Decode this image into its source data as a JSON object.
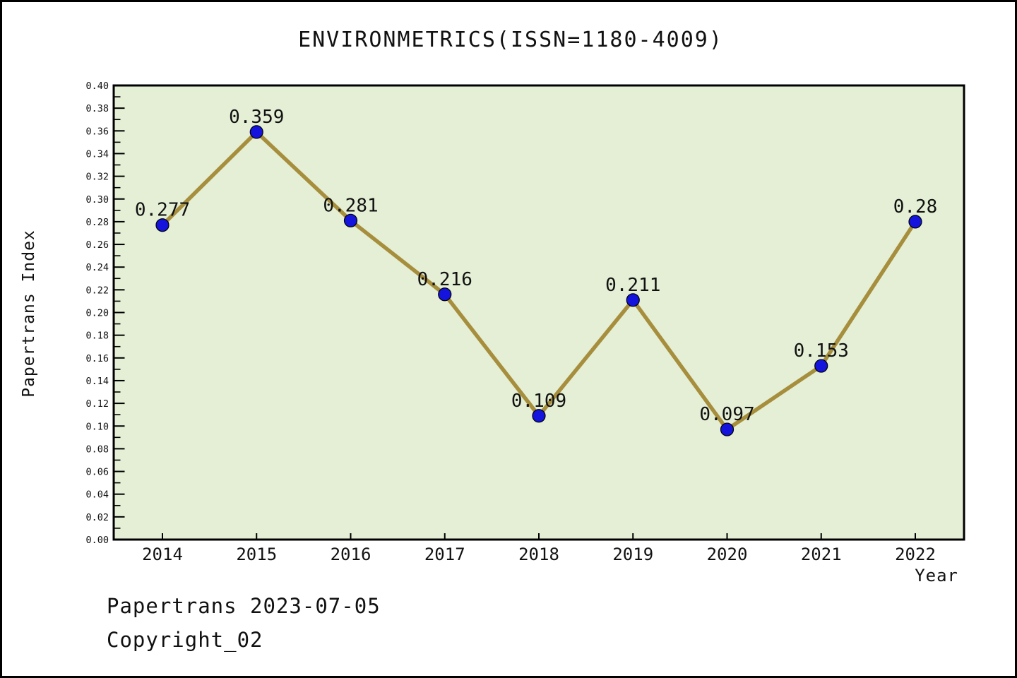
{
  "title": "ENVIRONMETRICS(ISSN=1180-4009)",
  "footer": {
    "line1": "Papertrans 2023-07-05",
    "line2": "Copyright_02"
  },
  "chart_data": {
    "type": "line",
    "title": "ENVIRONMETRICS(ISSN=1180-4009)",
    "xlabel": "Year",
    "ylabel": "Papertrans Index",
    "categories": [
      "2014",
      "2015",
      "2016",
      "2017",
      "2018",
      "2019",
      "2020",
      "2021",
      "2022"
    ],
    "values": [
      0.277,
      0.359,
      0.281,
      0.216,
      0.109,
      0.211,
      0.097,
      0.153,
      0.28
    ],
    "point_labels": [
      "0.277",
      "0.359",
      "0.281",
      "0.216",
      "0.109",
      "0.211",
      "0.097",
      "0.153",
      "0.28"
    ],
    "ylim": [
      0.0,
      0.4
    ],
    "y_major_step": 0.02,
    "y_minor_step": 0.01,
    "y_tick_labels": [
      "0.00",
      "0.02",
      "0.04",
      "0.06",
      "0.08",
      "0.10",
      "0.12",
      "0.14",
      "0.16",
      "0.18",
      "0.20",
      "0.22",
      "0.24",
      "0.26",
      "0.28",
      "0.30",
      "0.32",
      "0.34",
      "0.36",
      "0.38",
      "0.40"
    ],
    "grid": false,
    "legend_position": "none",
    "colors": {
      "line": "#a68e3d",
      "marker": "#1414dd",
      "marker_edge": "#000000",
      "plot_background": "#e4efd5",
      "frame": "#000000",
      "text": "#111111",
      "figure_background": "#ffffff"
    }
  }
}
